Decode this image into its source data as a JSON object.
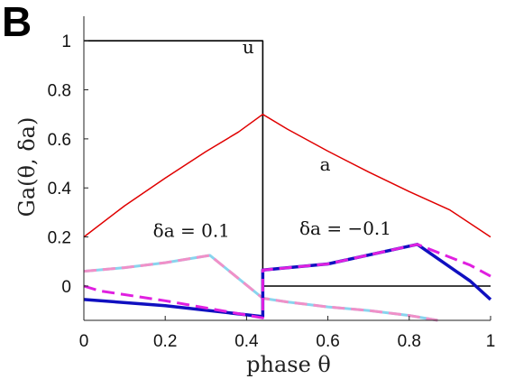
{
  "panel_label": "B",
  "chart_data": {
    "type": "line",
    "xlabel": "phase θ",
    "ylabel": "Ga(θ, δa)",
    "xlim": [
      0,
      1
    ],
    "ylim": [
      -0.14,
      1.1
    ],
    "xticks": [
      0,
      0.2,
      0.4,
      0.6,
      0.8,
      1
    ],
    "xtick_labels": [
      "0",
      "0.2",
      "0.4",
      "0.6",
      "0.8",
      "1"
    ],
    "yticks": [
      0,
      0.2,
      0.4,
      0.6,
      0.8,
      1
    ],
    "ytick_labels": [
      "0",
      "0.2",
      "0.4",
      "0.6",
      "0.8",
      "1"
    ],
    "grid": false,
    "series": [
      {
        "name": "u",
        "color": "#000000",
        "style": "solid",
        "width": 1.6,
        "x": [
          0,
          0.44,
          0.44,
          1
        ],
        "y": [
          1,
          1,
          0,
          0
        ]
      },
      {
        "name": "a",
        "color": "#e00000",
        "style": "solid",
        "width": 1.5,
        "x": [
          0,
          0.1,
          0.2,
          0.3,
          0.38,
          0.44,
          0.5,
          0.6,
          0.7,
          0.8,
          0.9,
          1
        ],
        "y": [
          0.2,
          0.327,
          0.44,
          0.548,
          0.628,
          0.7,
          0.64,
          0.55,
          0.465,
          0.385,
          0.31,
          0.2
        ]
      },
      {
        "name": "δa = 0.1 (light)",
        "color": "#88d4ee",
        "style": "solid",
        "width": 3,
        "x": [
          0,
          0.1,
          0.2,
          0.31,
          0.44,
          0.5,
          0.6,
          0.7,
          0.8,
          0.87
        ],
        "y": [
          0.06,
          0.075,
          0.095,
          0.125,
          -0.05,
          -0.065,
          -0.085,
          -0.1,
          -0.12,
          -0.14
        ]
      },
      {
        "name": "δa = 0.1 (dashed)",
        "color": "#f090c8",
        "style": "dashed",
        "width": 3,
        "x": [
          0,
          0.1,
          0.2,
          0.31,
          0.44,
          0.5,
          0.6,
          0.7,
          0.8,
          0.87
        ],
        "y": [
          0.06,
          0.075,
          0.095,
          0.125,
          -0.05,
          -0.065,
          -0.085,
          -0.1,
          -0.12,
          -0.14
        ]
      },
      {
        "name": "δa = −0.1 (solid)",
        "color": "#1010c0",
        "style": "solid",
        "width": 3.5,
        "x": [
          0,
          0.2,
          0.44,
          0.44,
          0.6,
          0.82,
          0.95,
          1
        ],
        "y": [
          -0.055,
          -0.08,
          -0.125,
          0.065,
          0.09,
          0.17,
          0.02,
          -0.055
        ]
      },
      {
        "name": "δa = −0.1 (dashed)",
        "color": "#e020e0",
        "style": "dashed",
        "width": 3,
        "x": [
          0,
          0.04,
          0.2,
          0.44,
          0.44,
          0.6,
          0.82,
          0.95,
          1
        ],
        "y": [
          0,
          -0.02,
          -0.06,
          -0.13,
          0.065,
          0.09,
          0.17,
          0.085,
          0.04
        ]
      }
    ],
    "annotations": [
      {
        "text": "u",
        "x": 0.39,
        "y": 0.95
      },
      {
        "text": "a",
        "x": 0.58,
        "y": 0.47
      },
      {
        "text": "δa = 0.1",
        "x": 0.17,
        "y": 0.2
      },
      {
        "text": "δa = −0.1",
        "x": 0.53,
        "y": 0.21
      }
    ]
  }
}
